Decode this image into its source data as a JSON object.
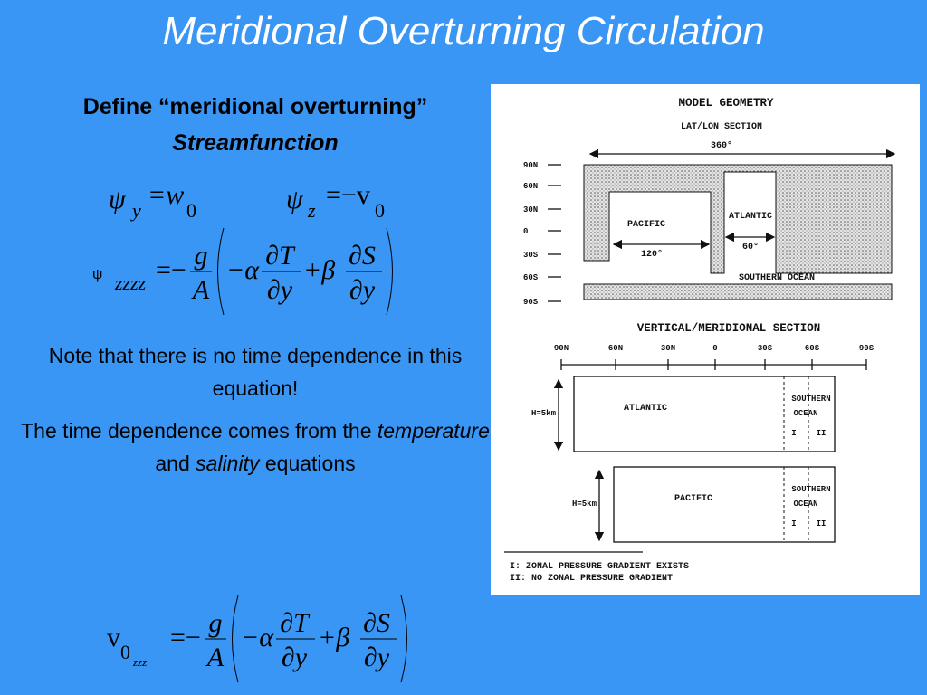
{
  "title": "Meridional Overturning Circulation",
  "heading": {
    "line1": "Define “meridional overturning”",
    "line2": "Streamfunction"
  },
  "equations": [
    {
      "lhs": "ψ",
      "lhs_sub": "y",
      "rhs": "=w",
      "rhs_sub": "0"
    },
    {
      "lhs": "ψ",
      "lhs_sub": "z",
      "rhs": "=−v",
      "rhs_sub": "0"
    },
    {
      "lhs": "ψ",
      "lhs_sub": "zzzz",
      "eq": "=−",
      "num": "g",
      "den": "A",
      "term1": "−α",
      "d1_num": "∂T",
      "d1_den": "∂y",
      "term2": "+β",
      "d2_num": "∂S",
      "d2_den": "∂y"
    },
    {
      "lhs": "v",
      "lhs_sub": "0",
      "lhs_subsub": "zzz",
      "eq": "=−",
      "num": "g",
      "den": "A",
      "term1": "−α",
      "d1_num": "∂T",
      "d1_den": "∂y",
      "term2": "+β",
      "d2_num": "∂S",
      "d2_den": "∂y"
    }
  ],
  "notes": [
    "Note that there is no time dependence in this equation!",
    [
      "The time dependence comes from the",
      "temperature",
      "and",
      "salinity",
      "equations"
    ]
  ],
  "figure": {
    "title": "MODEL GEOMETRY",
    "lat_lon": {
      "title": "LAT/LON SECTION",
      "span": "360°",
      "lat_labels": [
        "90N",
        "60N",
        "30N",
        "0",
        "30S",
        "60S",
        "90S"
      ],
      "pacific": "PACIFIC",
      "atlantic": "ATLANTIC",
      "pacific_width": "120°",
      "atlantic_width": "60°",
      "southern": "SOUTHERN OCEAN"
    },
    "vertical": {
      "title": "VERTICAL/MERIDIONAL SECTION",
      "lat_labels": [
        "90N",
        "60N",
        "30N",
        "0",
        "30S",
        "60S",
        "90S"
      ],
      "atlantic": {
        "depth": "H=5km",
        "name": "ATLANTIC",
        "southern1": "SOUTHERN",
        "southern2": "OCEAN",
        "zone1": "I",
        "zone2": "II"
      },
      "pacific": {
        "depth": "H=5km",
        "name": "PACIFIC",
        "southern1": "SOUTHERN",
        "southern2": "OCEAN",
        "zone1": "I",
        "zone2": "II"
      }
    },
    "legend": [
      "I:  ZONAL PRESSURE GRADIENT EXISTS",
      "II: NO ZONAL PRESSURE GRADIENT"
    ]
  }
}
